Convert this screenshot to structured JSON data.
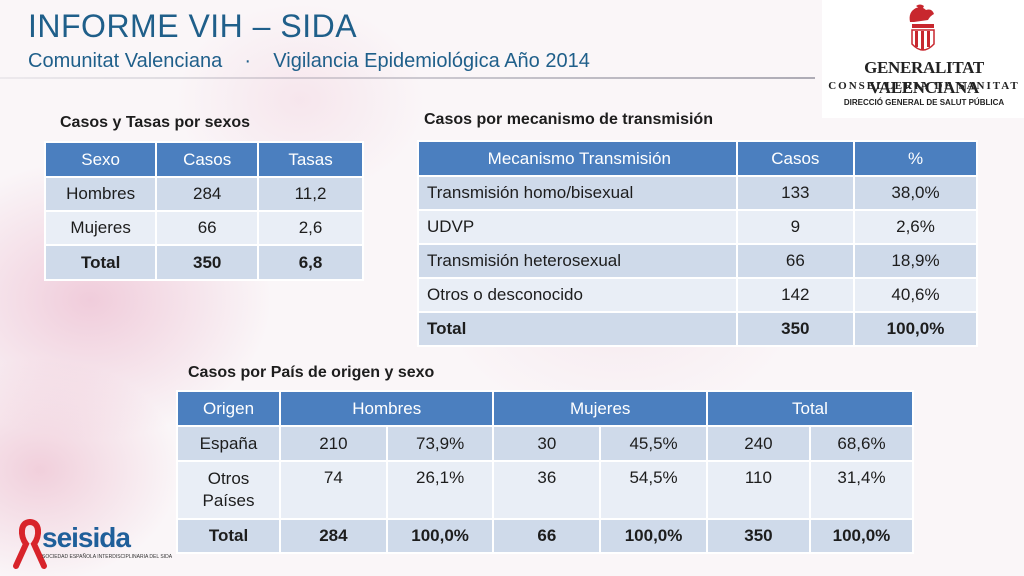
{
  "header": {
    "title": "INFORME VIH – SIDA",
    "subtitle": "Comunitat Valenciana    ·    Vigilancia Epidemiológica Año 2014"
  },
  "logo": {
    "line1": "GENERALITAT VALENCIANA",
    "line2": "CONSELLERIA DE SANITAT",
    "line3": "DIRECCIÓ GENERAL DE SALUT PÚBLICA"
  },
  "sex_table": {
    "title": "Casos y Tasas por sexos",
    "headers": [
      "Sexo",
      "Casos",
      "Tasas"
    ],
    "rows": [
      [
        "Hombres",
        "284",
        "11,2"
      ],
      [
        "Mujeres",
        "66",
        "2,6"
      ],
      [
        "Total",
        "350",
        "6,8"
      ]
    ]
  },
  "transmission_table": {
    "title": "Casos por mecanismo de transmisión",
    "headers": [
      "Mecanismo Transmisión",
      "Casos",
      "%"
    ],
    "rows": [
      [
        "Transmisión homo/bisexual",
        "133",
        "38,0%"
      ],
      [
        "UDVP",
        "9",
        "2,6%"
      ],
      [
        "Transmisión heterosexual",
        "66",
        "18,9%"
      ],
      [
        "Otros o desconocido",
        "142",
        "40,6%"
      ],
      [
        "Total",
        "350",
        "100,0%"
      ]
    ]
  },
  "origin_table": {
    "title": "Casos por País de origen y sexo",
    "headers": [
      "Origen",
      "Hombres",
      "Mujeres",
      "Total"
    ],
    "rows": [
      [
        "España",
        "210",
        "73,9%",
        "30",
        "45,5%",
        "240",
        "68,6%"
      ],
      [
        "Otros Países",
        "74",
        "26,1%",
        "36",
        "54,5%",
        "110",
        "31,4%"
      ],
      [
        "Total",
        "284",
        "100,0%",
        "66",
        "100,0%",
        "350",
        "100,0%"
      ]
    ]
  },
  "footer_logo": {
    "name": "seisida",
    "tagline": "SOCIEDAD ESPAÑOLA INTERDISCIPLINARIA DEL SIDA",
    "ribbon_color": "#d8232a",
    "text_color": "#1f5f9a"
  },
  "colors": {
    "title": "#1f5f8a",
    "table_header": "#4b7fbf",
    "row_band_dark": "#cfdaea",
    "row_band_light": "#e9eef6"
  }
}
